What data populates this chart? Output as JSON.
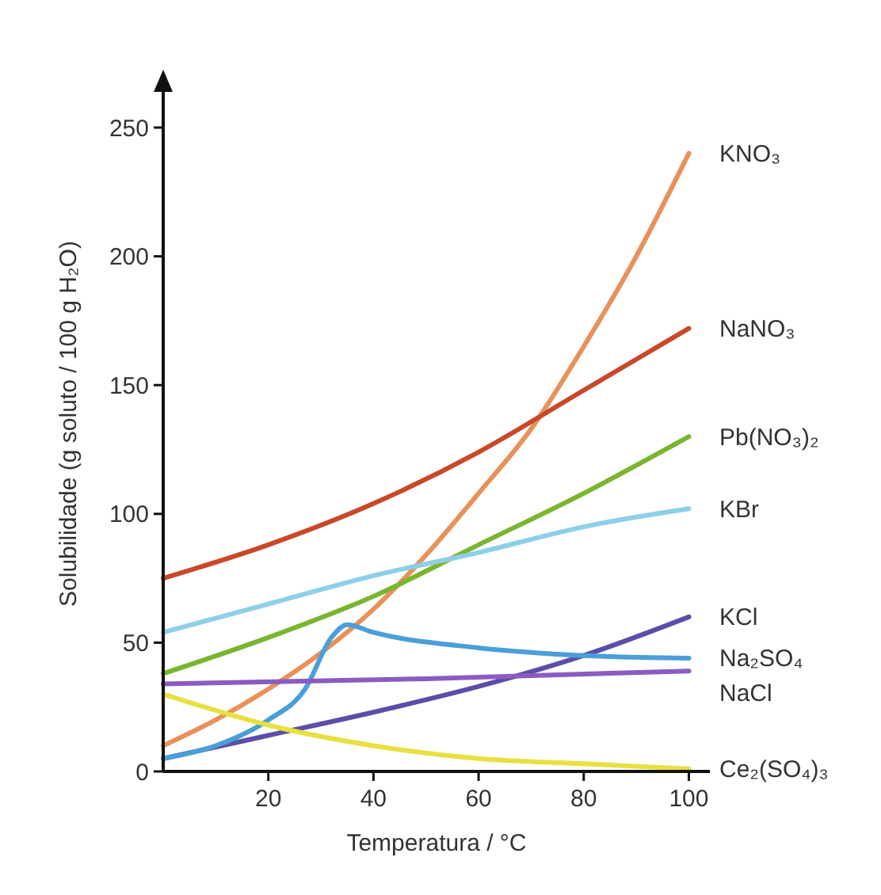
{
  "chart_data": {
    "type": "line",
    "xlabel": "Temperatura / °C",
    "ylabel": "Solubilidade (g soluto / 100 g H₂O)",
    "xlim": [
      0,
      104
    ],
    "ylim": [
      0,
      270
    ],
    "xticks": [
      20,
      40,
      60,
      80,
      100
    ],
    "yticks": [
      0,
      50,
      100,
      150,
      200,
      250
    ],
    "grid": false,
    "legend": false,
    "marker": "none",
    "line_style": "solid",
    "series": [
      {
        "name": "KNO₃",
        "color": "#e8915a",
        "x": [
          0,
          10,
          20,
          30,
          40,
          50,
          60,
          70,
          80,
          90,
          100
        ],
        "values": [
          10,
          20,
          32,
          46,
          63,
          84,
          108,
          133,
          165,
          200,
          240
        ]
      },
      {
        "name": "NaNO₃",
        "color": "#c9482a",
        "x": [
          0,
          20,
          40,
          60,
          80,
          100
        ],
        "values": [
          75,
          88,
          104,
          124,
          148,
          172
        ]
      },
      {
        "name": "Pb(NO₃)₂",
        "color": "#7ab530",
        "x": [
          0,
          20,
          40,
          60,
          80,
          100
        ],
        "values": [
          38,
          52,
          68,
          88,
          108,
          130
        ]
      },
      {
        "name": "KBr",
        "color": "#8ecfe8",
        "x": [
          0,
          20,
          40,
          60,
          80,
          100
        ],
        "values": [
          54,
          65,
          76,
          85,
          95,
          102
        ]
      },
      {
        "name": "KCl",
        "color": "#5a4fa8",
        "x": [
          0,
          20,
          40,
          60,
          80,
          100
        ],
        "values": [
          5,
          14,
          23,
          33,
          45,
          60
        ]
      },
      {
        "name": "Na₂SO₄",
        "color": "#4a9fd8",
        "x": [
          0,
          10,
          20,
          27,
          32,
          35,
          40,
          60,
          80,
          100
        ],
        "values": [
          5,
          10,
          20,
          32,
          52,
          57,
          54,
          48,
          45,
          44
        ]
      },
      {
        "name": "NaCl",
        "color": "#8a5cc0",
        "x": [
          0,
          50,
          100
        ],
        "values": [
          34,
          36,
          39
        ]
      },
      {
        "name": "Ce₂(SO₄)₃",
        "color": "#e8e040",
        "x": [
          0,
          20,
          40,
          60,
          80,
          100
        ],
        "values": [
          30,
          18,
          10,
          5,
          3,
          1
        ]
      }
    ]
  }
}
